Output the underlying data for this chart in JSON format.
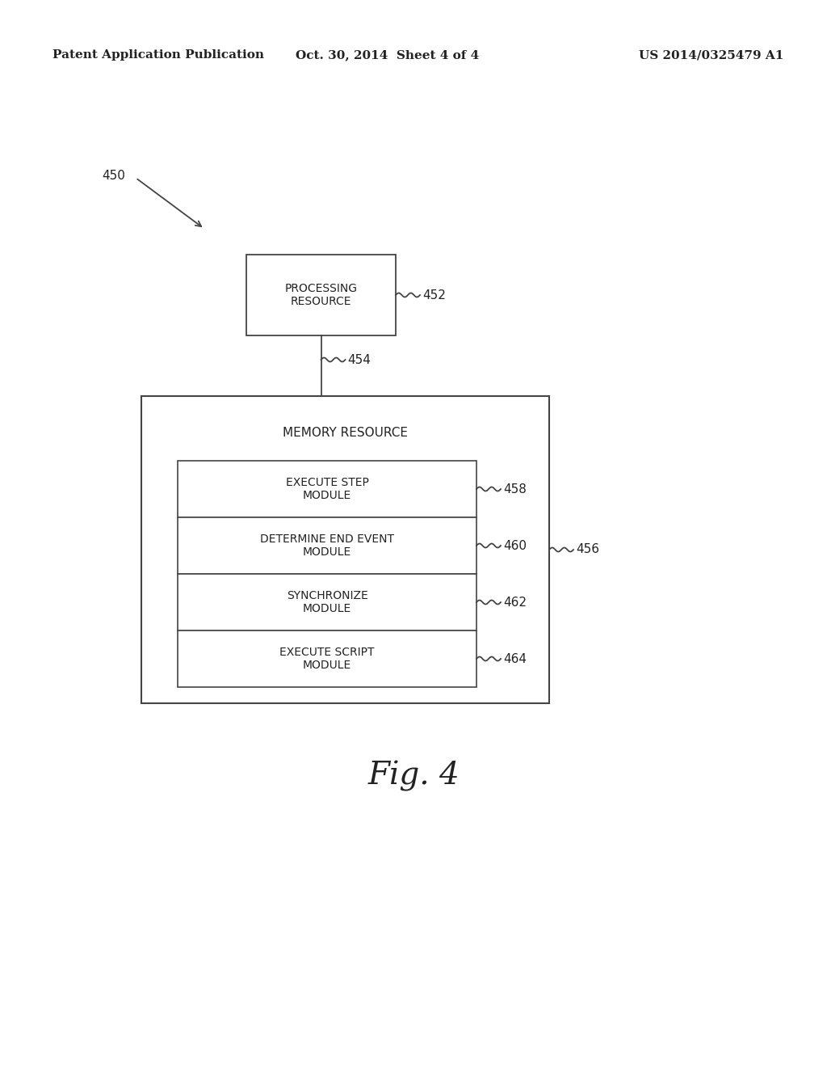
{
  "background_color": "#ffffff",
  "header_left": "Patent Application Publication",
  "header_center": "Oct. 30, 2014  Sheet 4 of 4",
  "header_right": "US 2014/0325479 A1",
  "header_fontsize": 11,
  "fig_label": "Fig. 4",
  "fig_label_fontsize": 28,
  "label_450": "450",
  "label_452": "452",
  "label_454": "454",
  "label_456": "456",
  "label_458": "458",
  "label_460": "460",
  "label_462": "462",
  "label_464": "464",
  "proc_box_text": "PROCESSING\nRESOURCE",
  "mem_box_text": "MEMORY RESOURCE",
  "module_texts": [
    "EXECUTE STEP\nMODULE",
    "DETERMINE END EVENT\nMODULE",
    "SYNCHRONIZE\nMODULE",
    "EXECUTE SCRIPT\nMODULE"
  ],
  "box_edge_color": "#444444",
  "box_fill_color": "#ffffff",
  "line_color": "#444444",
  "text_color": "#222222",
  "module_text_fontsize": 10,
  "mem_text_fontsize": 11,
  "proc_text_fontsize": 10,
  "ref_label_fontsize": 11
}
